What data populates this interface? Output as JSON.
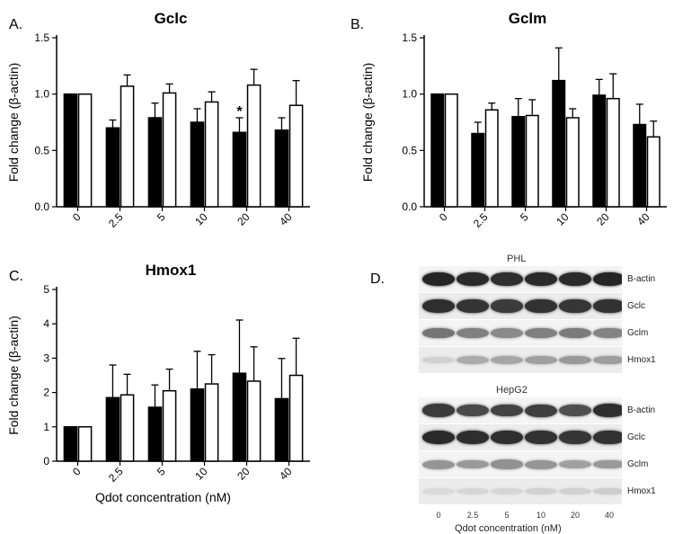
{
  "chart_data": [
    {
      "type": "bar",
      "panel": "A.",
      "title": "Gclc",
      "ylabel": "Fold change (β-actin)",
      "ylim": [
        0,
        1.5
      ],
      "yticks": [
        "0.0",
        "0.5",
        "1.0",
        "1.5"
      ],
      "categories": [
        "0",
        "2.5",
        "5",
        "10",
        "20",
        "40"
      ],
      "series": [
        {
          "fill": "#000000",
          "values": [
            1.0,
            0.7,
            0.79,
            0.75,
            0.66,
            0.68
          ],
          "errors": [
            0,
            0.07,
            0.13,
            0.12,
            0.13,
            0.11
          ]
        },
        {
          "fill": "#ffffff",
          "values": [
            1.0,
            1.07,
            1.01,
            0.93,
            1.08,
            0.9
          ],
          "errors": [
            0,
            0.1,
            0.08,
            0.09,
            0.14,
            0.22
          ]
        }
      ],
      "annotations": [
        {
          "text": "*",
          "category": "20",
          "series": 0
        }
      ]
    },
    {
      "type": "bar",
      "panel": "B.",
      "title": "Gclm",
      "ylabel": "Fold change (β-actin)",
      "ylim": [
        0,
        1.5
      ],
      "yticks": [
        "0.0",
        "0.5",
        "1.0",
        "1.5"
      ],
      "categories": [
        "0",
        "2.5",
        "5",
        "10",
        "20",
        "40"
      ],
      "series": [
        {
          "fill": "#000000",
          "values": [
            1.0,
            0.65,
            0.8,
            1.12,
            0.99,
            0.73
          ],
          "errors": [
            0,
            0.1,
            0.16,
            0.29,
            0.14,
            0.18
          ]
        },
        {
          "fill": "#ffffff",
          "values": [
            1.0,
            0.86,
            0.81,
            0.79,
            0.96,
            0.62
          ],
          "errors": [
            0,
            0.06,
            0.14,
            0.08,
            0.22,
            0.14
          ]
        }
      ],
      "annotations": []
    },
    {
      "type": "bar",
      "panel": "C.",
      "title": "Hmox1",
      "ylabel": "Fold change (β-actin)",
      "ylim": [
        0,
        5
      ],
      "yticks": [
        "0",
        "1",
        "2",
        "3",
        "4",
        "5"
      ],
      "categories": [
        "0",
        "2.5",
        "5",
        "10",
        "20",
        "40"
      ],
      "series": [
        {
          "fill": "#000000",
          "values": [
            1.0,
            1.85,
            1.57,
            2.1,
            2.56,
            1.82
          ],
          "errors": [
            0,
            0.95,
            0.65,
            1.1,
            1.55,
            1.17
          ]
        },
        {
          "fill": "#ffffff",
          "values": [
            1.0,
            1.93,
            2.05,
            2.25,
            2.33,
            2.5
          ],
          "errors": [
            0,
            0.6,
            0.63,
            0.85,
            1.0,
            1.08
          ]
        }
      ],
      "annotations": []
    }
  ],
  "shared_xlabel": "Qdot concentration (nM)",
  "blot": {
    "panel": "D.",
    "sections": [
      {
        "title": "PHL",
        "rows": [
          {
            "label": "B-actin",
            "intensity": [
              0.92,
              0.9,
              0.88,
              0.9,
              0.9,
              0.92
            ]
          },
          {
            "label": "Gclc",
            "intensity": [
              0.88,
              0.85,
              0.82,
              0.86,
              0.84,
              0.86
            ]
          },
          {
            "label": "Gclm",
            "intensity": [
              0.55,
              0.5,
              0.45,
              0.5,
              0.52,
              0.48
            ]
          },
          {
            "label": "Hmox1",
            "intensity": [
              0.12,
              0.3,
              0.32,
              0.35,
              0.38,
              0.36
            ]
          }
        ]
      },
      {
        "title": "HepG2",
        "rows": [
          {
            "label": "B-actin",
            "intensity": [
              0.82,
              0.75,
              0.78,
              0.8,
              0.72,
              0.88
            ]
          },
          {
            "label": "Gclc",
            "intensity": [
              0.9,
              0.88,
              0.88,
              0.86,
              0.84,
              0.86
            ]
          },
          {
            "label": "Gclm",
            "intensity": [
              0.4,
              0.38,
              0.42,
              0.4,
              0.35,
              0.38
            ]
          },
          {
            "label": "Hmox1",
            "intensity": [
              0.08,
              0.1,
              0.1,
              0.12,
              0.12,
              0.14
            ]
          }
        ]
      }
    ],
    "lanes": [
      "0",
      "2.5",
      "5",
      "10",
      "20",
      "40"
    ],
    "xlabel": "Qdot concentration (nM)"
  }
}
